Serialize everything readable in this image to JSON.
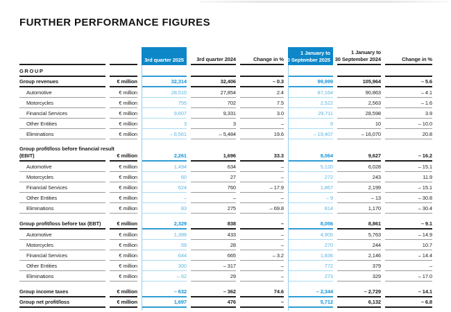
{
  "title": "FURTHER PERFORMANCE FIGURES",
  "colors": {
    "header_blue": "#0d87c8",
    "blue_text_strong": "#1595d6",
    "blue_text_light": "#5cb3e2",
    "blue_line_strong": "#2f9cd4",
    "blue_line_light": "#a8d9f1",
    "vertical_line": "#8fcdec",
    "dark_line": "#1d1d1d",
    "gray_line": "#999999",
    "text_dark": "#1d1d1d"
  },
  "table": {
    "group_label": "GROUP",
    "unit": "€ million",
    "headers": {
      "q_current": [
        "3rd quarter 2025"
      ],
      "q_prior": [
        "3rd quarter 2024"
      ],
      "q_change": [
        "Change in %"
      ],
      "ytd_current": [
        "1 January to",
        "30 September 2025"
      ],
      "ytd_prior": [
        "1 January to",
        "30 September 2024"
      ],
      "ytd_change": [
        "Change in %"
      ]
    },
    "sections": [
      {
        "rows": [
          {
            "label": [
              "Group revenues"
            ],
            "bold": true,
            "values": [
              "32,314",
              "32,406",
              "– 0.3",
              "99,999",
              "105,964",
              "– 5.6"
            ]
          },
          {
            "label": [
              "Automotive"
            ],
            "bold": false,
            "values": [
              "28,510",
              "27,854",
              "2.4",
              "87,164",
              "90,863",
              "– 4.1"
            ]
          },
          {
            "label": [
              "Motorcycles"
            ],
            "bold": false,
            "values": [
              "755",
              "702",
              "7.5",
              "2,522",
              "2,563",
              "– 1.6"
            ]
          },
          {
            "label": [
              "Financial Services"
            ],
            "bold": false,
            "values": [
              "9,607",
              "9,331",
              "3.0",
              "29,711",
              "28,598",
              "3.9"
            ]
          },
          {
            "label": [
              "Other Entities"
            ],
            "bold": false,
            "values": [
              "3",
              "3",
              "–",
              "9",
              "10",
              "– 10.0"
            ]
          },
          {
            "label": [
              "Eliminations"
            ],
            "bold": false,
            "values": [
              "– 6,561",
              "– 5,484",
              "19.6",
              "– 19,407",
              "– 16,070",
              "20.8"
            ]
          }
        ]
      },
      {
        "rows": [
          {
            "label": [
              "Group profit/loss before financial result",
              "(EBIT)"
            ],
            "bold": true,
            "values": [
              "2,261",
              "1,696",
              "33.3",
              "8,064",
              "9,627",
              "– 16.2"
            ]
          },
          {
            "label": [
              "Automotive"
            ],
            "bold": false,
            "values": [
              "1,494",
              "634",
              "–",
              "5,120",
              "6,028",
              "– 15.1"
            ]
          },
          {
            "label": [
              "Motorcycles"
            ],
            "bold": false,
            "values": [
              "60",
              "27",
              "–",
              "272",
              "243",
              "11.9"
            ]
          },
          {
            "label": [
              "Financial Services"
            ],
            "bold": false,
            "values": [
              "624",
              "760",
              "– 17.9",
              "1,867",
              "2,199",
              "– 15.1"
            ]
          },
          {
            "label": [
              "Other Entities"
            ],
            "bold": false,
            "values": [
              "–",
              "–",
              "–",
              "– 9",
              "– 13",
              "– 30.8"
            ]
          },
          {
            "label": [
              "Eliminations"
            ],
            "bold": false,
            "values": [
              "83",
              "275",
              "– 69.8",
              "814",
              "1,170",
              "– 30.4"
            ]
          }
        ]
      },
      {
        "rows": [
          {
            "label": [
              "Group profit/loss before tax (EBT)"
            ],
            "bold": true,
            "values": [
              "2,329",
              "838",
              "–",
              "8,056",
              "8,861",
              "– 9.1"
            ]
          },
          {
            "label": [
              "Automotive"
            ],
            "bold": false,
            "values": [
              "1,388",
              "433",
              "–",
              "4,905",
              "5,763",
              "– 14.9"
            ]
          },
          {
            "label": [
              "Motorcycles"
            ],
            "bold": false,
            "values": [
              "59",
              "28",
              "–",
              "270",
              "244",
              "10.7"
            ]
          },
          {
            "label": [
              "Financial Services"
            ],
            "bold": false,
            "values": [
              "644",
              "665",
              "– 3.2",
              "1,836",
              "2,146",
              "– 14.4"
            ]
          },
          {
            "label": [
              "Other Entities"
            ],
            "bold": false,
            "values": [
              "300",
              "– 317",
              "–",
              "772",
              "379",
              "–"
            ]
          },
          {
            "label": [
              "Eliminations"
            ],
            "bold": false,
            "values": [
              "– 62",
              "29",
              "–",
              "273",
              "329",
              "– 17.0"
            ]
          }
        ]
      },
      {
        "rows": [
          {
            "label": [
              "Group income taxes"
            ],
            "bold": true,
            "values": [
              "– 632",
              "– 362",
              "74.6",
              "– 2,344",
              "– 2,729",
              "– 14.1"
            ]
          },
          {
            "label": [
              "Group net profit/loss"
            ],
            "bold": true,
            "values": [
              "1,697",
              "476",
              "–",
              "5,712",
              "6,132",
              "– 6.8"
            ]
          }
        ]
      }
    ]
  }
}
